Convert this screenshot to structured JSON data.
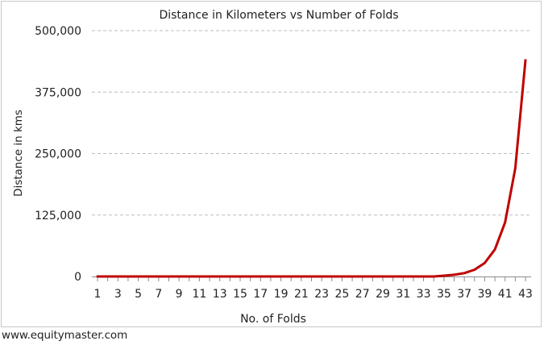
{
  "chart_data": {
    "type": "line",
    "title": "Distance in Kilometers vs Number of Folds",
    "xlabel": "No. of Folds",
    "ylabel": "Distance in kms",
    "x": [
      1,
      2,
      3,
      4,
      5,
      6,
      7,
      8,
      9,
      10,
      11,
      12,
      13,
      14,
      15,
      16,
      17,
      18,
      19,
      20,
      21,
      22,
      23,
      24,
      25,
      26,
      27,
      28,
      29,
      30,
      31,
      32,
      33,
      34,
      35,
      36,
      37,
      38,
      39,
      40,
      41,
      42,
      43
    ],
    "x_tick_labels": [
      "1",
      "3",
      "5",
      "7",
      "9",
      "11",
      "13",
      "15",
      "17",
      "19",
      "21",
      "23",
      "25",
      "27",
      "29",
      "31",
      "33",
      "35",
      "37",
      "39",
      "41",
      "43"
    ],
    "y_tick_labels": [
      "0",
      "125,000",
      "250,000",
      "375,000",
      "500,000"
    ],
    "ylim": [
      0,
      500000
    ],
    "grid": true,
    "series": [
      {
        "color": "#c00000",
        "values": [
          0,
          0,
          0,
          0,
          0,
          0,
          0,
          0,
          0,
          0,
          0,
          0,
          0,
          0,
          0,
          0,
          0,
          0,
          0,
          0,
          0,
          0,
          0,
          0,
          0,
          0,
          0,
          0,
          0,
          0,
          0,
          0,
          0,
          0,
          1718,
          3436,
          6872,
          13744,
          27488,
          54976,
          109951,
          219902,
          439805
        ]
      }
    ]
  },
  "footer": {
    "source": "www.equitymaster.com"
  }
}
